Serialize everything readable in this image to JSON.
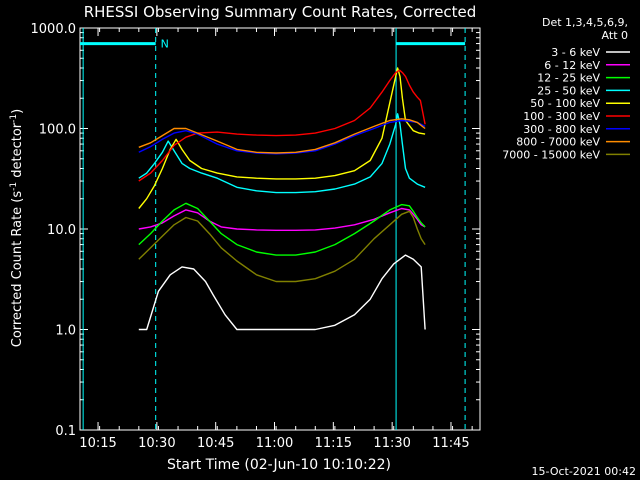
{
  "chart_data": {
    "type": "line",
    "title": "RHESSI Observing Summary Count Rates, Corrected",
    "xlabel": "Start Time (02-Jun-10 10:10:22)",
    "ylabel": "Corrected Count Rate (s⁻¹ detector⁻¹)",
    "ylabel_parts": [
      "Corrected Count Rate (s",
      "-1",
      " detector",
      "-1",
      ")"
    ],
    "yscale": "log",
    "ylim": [
      0.1,
      1000
    ],
    "y_tick_values": [
      0.1,
      1,
      10,
      100,
      1000
    ],
    "y_tick_labels": [
      "0.1",
      "1.0",
      "10.0",
      "100.0",
      "1000.0"
    ],
    "xlim_min": [
      0,
      102
    ],
    "x_ticks_min": [
      4.6,
      19.6,
      34.6,
      49.6,
      64.6,
      79.6,
      94.6
    ],
    "x_tick_labels": [
      "10:15",
      "10:30",
      "10:45",
      "11:00",
      "11:15",
      "11:30",
      "11:45"
    ],
    "legend_header": [
      "Det 1,3,4,5,6,9,",
      "Att 0"
    ],
    "legend_placement": "outside-right",
    "timestamp": "15-Oct-2021 00:42",
    "night_marker": "N",
    "series": [
      {
        "name": "3 - 6 keV",
        "color": "#ffffff",
        "x": [
          15,
          17,
          20,
          23,
          26,
          29,
          32,
          34,
          37,
          40,
          43,
          46,
          50,
          55,
          60,
          65,
          70,
          74,
          77,
          80,
          83,
          85,
          87,
          88
        ],
        "y": [
          1.0,
          1.0,
          2.4,
          3.5,
          4.2,
          4.0,
          3.0,
          2.2,
          1.4,
          1.0,
          1.0,
          1.0,
          1.0,
          1.0,
          1.0,
          1.1,
          1.4,
          2.0,
          3.2,
          4.5,
          5.5,
          5.0,
          4.2,
          1.0
        ]
      },
      {
        "name": "6 - 12 keV",
        "color": "#ff00ff",
        "x": [
          15,
          18,
          21,
          24,
          27,
          30,
          33,
          36,
          40,
          45,
          50,
          55,
          60,
          65,
          70,
          75,
          79,
          82,
          84,
          85,
          86,
          87,
          88
        ],
        "y": [
          10,
          10.5,
          11.5,
          13.5,
          15.5,
          14.5,
          12.0,
          10.5,
          10.0,
          9.8,
          9.7,
          9.7,
          9.8,
          10.2,
          11.0,
          12.5,
          14.5,
          16.0,
          15.5,
          14.0,
          12.5,
          11.0,
          10.5
        ]
      },
      {
        "name": "12 - 25 keV",
        "color": "#00ff00",
        "x": [
          15,
          18,
          21,
          24,
          27,
          30,
          33,
          36,
          40,
          45,
          50,
          55,
          60,
          65,
          70,
          75,
          79,
          82,
          84,
          85,
          86,
          87,
          88
        ],
        "y": [
          7.0,
          9.0,
          12.0,
          15.5,
          18.0,
          16.0,
          12.0,
          9.0,
          7.0,
          5.9,
          5.5,
          5.5,
          5.9,
          7.0,
          9.0,
          12.0,
          15.5,
          17.5,
          17.0,
          15.0,
          13.0,
          11.5,
          10.5
        ]
      },
      {
        "name": "25 - 50 keV",
        "color": "#00ffff",
        "x": [
          15,
          17,
          19,
          21,
          22.5,
          24,
          26,
          28,
          31,
          35,
          40,
          45,
          50,
          55,
          60,
          65,
          70,
          74,
          77,
          79,
          80.5,
          81,
          81.6,
          82.2,
          83,
          84,
          86,
          88
        ],
        "y": [
          32,
          36,
          45,
          58,
          75,
          60,
          45,
          40,
          36,
          32,
          26,
          24,
          23,
          23,
          23.5,
          25,
          28,
          33,
          45,
          70,
          110,
          140,
          110,
          70,
          40,
          32,
          28,
          26
        ]
      },
      {
        "name": "50 - 100 keV",
        "color": "#ffff00",
        "x": [
          15,
          17,
          19,
          21,
          23,
          24.5,
          26,
          28,
          31,
          35,
          40,
          45,
          50,
          55,
          60,
          65,
          70,
          74,
          77,
          79,
          80.5,
          81,
          81.6,
          82.2,
          83,
          85,
          86.5,
          88
        ],
        "y": [
          16,
          20,
          27,
          40,
          62,
          78,
          62,
          48,
          40,
          36,
          33,
          32,
          31.5,
          31.5,
          32,
          34,
          38,
          48,
          80,
          180,
          330,
          400,
          330,
          200,
          120,
          95,
          90,
          88
        ]
      },
      {
        "name": "100 - 300 keV",
        "color": "#ff0000",
        "x": [
          15,
          18,
          21,
          24,
          27,
          30,
          35,
          40,
          45,
          50,
          55,
          60,
          65,
          70,
          74,
          77,
          79,
          80.5,
          81.5,
          82.2,
          83,
          84,
          85,
          86,
          86.8,
          88
        ],
        "y": [
          30,
          36,
          48,
          68,
          82,
          90,
          92,
          88,
          86,
          85,
          86,
          90,
          100,
          120,
          160,
          230,
          300,
          360,
          380,
          360,
          330,
          270,
          230,
          205,
          190,
          110
        ]
      },
      {
        "name": "300 - 800 keV",
        "color": "#0000ff",
        "x": [
          15,
          18,
          21,
          24,
          27,
          30,
          35,
          40,
          45,
          50,
          55,
          60,
          65,
          70,
          75,
          79,
          82,
          84,
          86,
          88
        ],
        "y": [
          58,
          66,
          78,
          90,
          95,
          88,
          70,
          60,
          57,
          56,
          57,
          60,
          70,
          85,
          100,
          115,
          120,
          118,
          115,
          105
        ]
      },
      {
        "name": "800 - 7000 keV",
        "color": "#ff8c00",
        "x": [
          15,
          18,
          21,
          24,
          27,
          30,
          35,
          40,
          45,
          50,
          55,
          60,
          65,
          70,
          75,
          79,
          82,
          84,
          86,
          88
        ],
        "y": [
          65,
          72,
          85,
          100,
          100,
          90,
          75,
          62,
          58,
          57,
          58,
          62,
          72,
          88,
          105,
          120,
          125,
          122,
          115,
          100
        ]
      },
      {
        "name": "7000 - 15000 keV",
        "color": "#808000",
        "x": [
          15,
          18,
          21,
          24,
          27,
          30,
          33,
          36,
          40,
          45,
          50,
          55,
          60,
          65,
          70,
          75,
          79,
          82,
          84,
          85,
          86,
          87,
          88
        ],
        "y": [
          5.0,
          6.5,
          8.5,
          11.0,
          13.0,
          12.0,
          9.0,
          6.5,
          4.8,
          3.5,
          3.0,
          3.0,
          3.2,
          3.8,
          5.0,
          8.0,
          11.0,
          14.0,
          15.0,
          13.0,
          10.0,
          8.0,
          7.0
        ]
      }
    ]
  },
  "overlay": {
    "solid_verticals_min": [
      0.8,
      80.6
    ],
    "dashed_verticals_min": [
      19.3,
      98.2
    ],
    "night_bars_min": [
      [
        0,
        19.3
      ],
      [
        80.6,
        98.2
      ]
    ],
    "night_bar_value": 700,
    "colors": {
      "overlay": "#00ffff",
      "axis": "#ffffff",
      "background": "#000000"
    }
  }
}
